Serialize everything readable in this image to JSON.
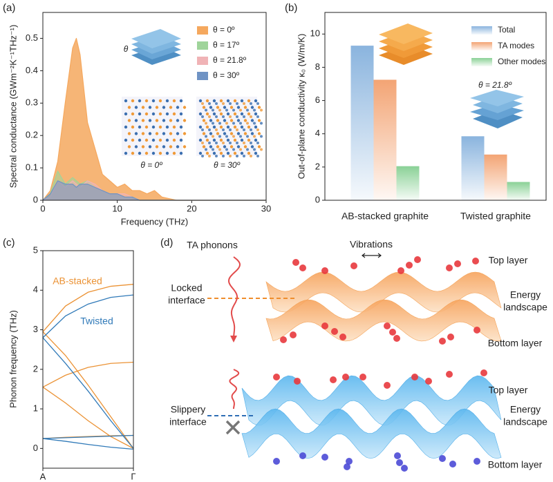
{
  "chart_data": [
    {
      "type": "area",
      "label": "(a)",
      "xlabel": "Frequency (THz)",
      "ylabel": "Spectral conductance (GWm⁻²K⁻¹THz⁻¹)",
      "x": [
        0,
        1,
        2,
        3,
        4,
        4.5,
        5,
        6,
        7,
        8,
        9,
        10,
        11,
        12,
        13,
        14,
        15,
        16,
        17,
        18,
        20,
        22,
        24,
        26,
        28,
        30
      ],
      "series": [
        {
          "name": "θ = 0º",
          "color": "#f5a85e",
          "values": [
            0,
            0.03,
            0.12,
            0.3,
            0.47,
            0.5,
            0.45,
            0.24,
            0.16,
            0.08,
            0.06,
            0.04,
            0.05,
            0.03,
            0.03,
            0.02,
            0.03,
            0.01,
            0.005,
            0,
            0,
            0,
            0,
            0,
            0,
            0
          ]
        },
        {
          "name": "θ = 17º",
          "color": "#9fd49a",
          "values": [
            0,
            0.02,
            0.09,
            0.05,
            0.07,
            0.06,
            0.05,
            0.06,
            0.04,
            0.03,
            0.02,
            0.02,
            0.01,
            0.01,
            0,
            0,
            0,
            0,
            0,
            0,
            0,
            0,
            0,
            0,
            0,
            0
          ]
        },
        {
          "name": "θ = 21.8º",
          "color": "#f0b3b6",
          "values": [
            0,
            0.01,
            0.06,
            0.04,
            0.06,
            0.05,
            0.04,
            0.06,
            0.05,
            0.03,
            0.02,
            0.02,
            0.02,
            0.01,
            0,
            0,
            0,
            0,
            0,
            0,
            0,
            0,
            0,
            0,
            0,
            0
          ]
        },
        {
          "name": "θ = 30º",
          "color": "#6f93c4",
          "values": [
            0,
            0.02,
            0.06,
            0.05,
            0.05,
            0.04,
            0.05,
            0.05,
            0.04,
            0.03,
            0.02,
            0.02,
            0.01,
            0.01,
            0,
            0,
            0,
            0,
            0,
            0,
            0,
            0,
            0,
            0,
            0,
            0
          ]
        }
      ],
      "xlim": [
        0,
        30
      ],
      "xticks": [
        0,
        10,
        20,
        30
      ],
      "ylim": [
        0,
        0.58
      ],
      "yticks": [
        0,
        0.1,
        0.2,
        0.3,
        0.4,
        0.5
      ],
      "annotations": [
        "θ",
        "θ = 0º",
        "θ = 30º"
      ]
    },
    {
      "type": "bar",
      "label": "(b)",
      "ylabel": "Out-of-plane conductivity κ₀ (W/m/K)",
      "categories": [
        "AB-stacked graphite",
        "Twisted graphite"
      ],
      "series": [
        {
          "name": "Total",
          "color": "#8ab4de",
          "values": [
            9.3,
            3.85
          ]
        },
        {
          "name": "TA modes",
          "color": "#f3a474",
          "values": [
            7.25,
            2.75
          ]
        },
        {
          "name": "Other modes",
          "color": "#8ad196",
          "values": [
            2.05,
            1.1
          ]
        }
      ],
      "ylim": [
        0,
        11.3
      ],
      "yticks": [
        0,
        2,
        4,
        6,
        8,
        10
      ],
      "annotations": [
        "θ = 21.8º"
      ]
    },
    {
      "type": "line",
      "label": "(c)",
      "ylabel": "Phonon frequency (THz)",
      "x": [
        0,
        0.25,
        0.5,
        0.75,
        1
      ],
      "xlim": [
        0,
        1
      ],
      "xticks": [
        {
          "value": 0,
          "label": "A"
        },
        {
          "value": 1,
          "label": "Γ"
        }
      ],
      "ylim": [
        -0.5,
        5
      ],
      "yticks": [
        0,
        1,
        2,
        3,
        4,
        5
      ],
      "series": [
        {
          "name": "AB-stacked",
          "color": "#eb9234",
          "branches": [
            [
              2.95,
              3.6,
              3.95,
              4.1,
              4.15
            ],
            [
              2.95,
              2.35,
              1.6,
              0.8,
              0
            ],
            [
              1.55,
              1.85,
              2.05,
              2.15,
              2.18
            ],
            [
              1.55,
              1.15,
              0.7,
              0.3,
              0
            ],
            [
              0.25,
              0.28,
              0.3,
              0.32,
              0.33
            ]
          ]
        },
        {
          "name": "Twisted",
          "color": "#2f79b8",
          "branches": [
            [
              2.8,
              3.35,
              3.65,
              3.82,
              3.88
            ],
            [
              2.8,
              2.15,
              1.45,
              0.7,
              0
            ],
            [
              0.25,
              0.27,
              0.29,
              0.31,
              0.33
            ],
            [
              0.25,
              0.18,
              0.1,
              0.03,
              -0.02
            ]
          ]
        }
      ]
    }
  ],
  "panel_d": {
    "label": "(d)",
    "ta_phonons": "TA phonons",
    "vibrations": "Vibrations",
    "locked": {
      "top": "Top layer",
      "interface": [
        "Locked",
        "interface"
      ],
      "landscape": [
        "Energy",
        "landscape"
      ],
      "bottom": "Bottom layer"
    },
    "slippery": {
      "top": "Top layer",
      "interface": [
        "Slippery",
        "interface"
      ],
      "landscape": [
        "Energy",
        "landscape"
      ],
      "bottom": "Bottom layer"
    }
  }
}
